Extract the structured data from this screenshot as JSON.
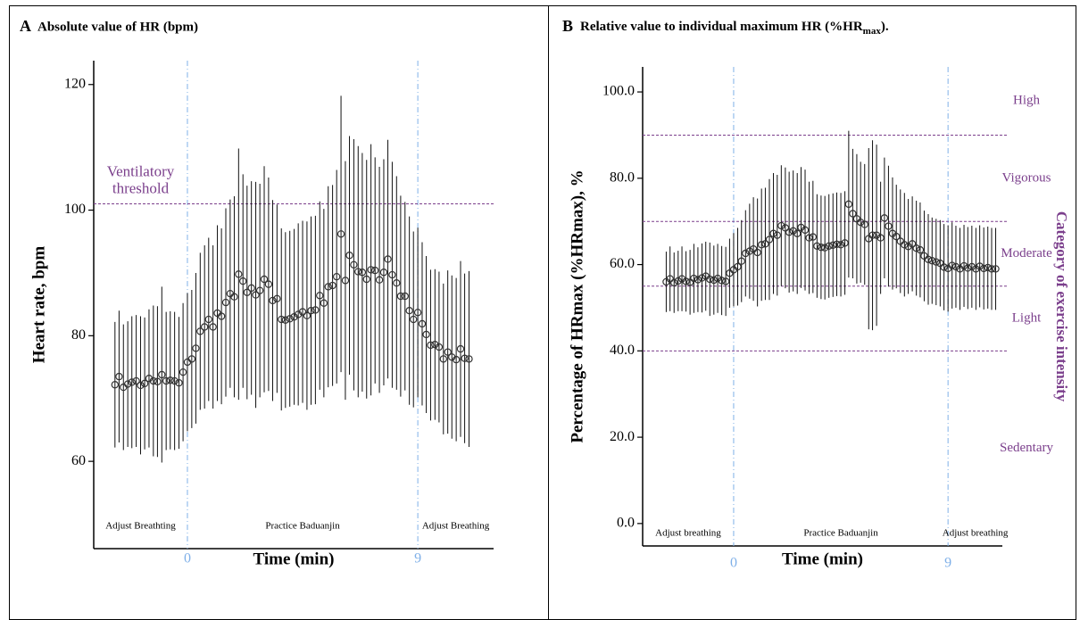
{
  "chart_data": [
    {
      "type": "errorbar",
      "panel": "A",
      "title": "Absolute value of HR (bpm)",
      "x_label": "Time (min)",
      "y_label": "Heart rate, bpm",
      "xlim": [
        -3.66,
        11.96
      ],
      "ylim": [
        46.1,
        123.8
      ],
      "xticks": [
        0,
        9
      ],
      "yticks": [
        60,
        80,
        100,
        120
      ],
      "threshold_lines": [
        101
      ],
      "threshold_label": [
        "Ventilatory",
        "threshold"
      ],
      "phases": [
        "Adjust Breathting",
        "Practice Baduanjin",
        "Adjust Breathing"
      ],
      "color": "#333333",
      "line_color": "#7b3f8c",
      "marker_line_color": "#7fb0e8",
      "x": [
        -2.83,
        -2.67,
        -2.5,
        -2.33,
        -2.17,
        -2,
        -1.83,
        -1.67,
        -1.5,
        -1.33,
        -1.17,
        -1,
        -0.83,
        -0.67,
        -0.5,
        -0.33,
        -0.17,
        0,
        0.17,
        0.33,
        0.5,
        0.67,
        0.83,
        1,
        1.17,
        1.33,
        1.5,
        1.67,
        1.83,
        2,
        2.17,
        2.33,
        2.5,
        2.67,
        2.83,
        3,
        3.17,
        3.33,
        3.5,
        3.67,
        3.83,
        4,
        4.17,
        4.33,
        4.5,
        4.67,
        4.83,
        5,
        5.17,
        5.33,
        5.5,
        5.67,
        5.83,
        6,
        6.17,
        6.33,
        6.5,
        6.67,
        6.83,
        7,
        7.17,
        7.33,
        7.5,
        7.67,
        7.83,
        8,
        8.17,
        8.33,
        8.5,
        8.67,
        8.83,
        9,
        9.17,
        9.33,
        9.5,
        9.67,
        9.83,
        10,
        10.17,
        10.33,
        10.5,
        10.67,
        10.83,
        11
      ],
      "values": [
        72.2,
        73.5,
        71.8,
        72.3,
        72.6,
        72.8,
        72.1,
        72.4,
        73.2,
        72.8,
        72.7,
        73.8,
        72.8,
        72.9,
        72.8,
        72.5,
        74.2,
        75.8,
        76.3,
        78.0,
        80.7,
        81.4,
        82.6,
        81.4,
        83.6,
        83.1,
        85.3,
        86.7,
        86.2,
        89.8,
        88.7,
        86.9,
        87.6,
        86.5,
        87.2,
        89.0,
        88.2,
        85.6,
        85.9,
        82.6,
        82.5,
        82.7,
        83.0,
        83.4,
        83.8,
        83.2,
        84.0,
        84.1,
        86.4,
        85.2,
        87.8,
        88.0,
        89.4,
        96.2,
        88.8,
        92.8,
        91.3,
        90.2,
        90.1,
        89.0,
        90.5,
        90.4,
        88.9,
        90.1,
        92.2,
        89.7,
        88.4,
        86.3,
        86.3,
        84.0,
        82.6,
        83.7,
        81.9,
        80.2,
        78.5,
        78.6,
        78.2,
        76.3,
        77.4,
        76.6,
        76.2,
        77.9,
        76.4,
        76.3
      ],
      "errors": [
        10,
        10.5,
        10,
        10,
        10.5,
        10.5,
        11,
        10.5,
        11,
        12,
        12,
        14,
        11,
        11,
        11,
        10.5,
        11,
        11,
        11,
        12,
        12.5,
        13,
        13,
        13,
        14,
        14,
        15,
        15,
        16,
        20,
        17,
        17,
        17,
        18,
        17,
        18,
        17,
        16,
        15,
        14.5,
        14,
        14,
        14,
        14.5,
        14.5,
        15,
        15,
        15,
        15,
        15,
        16,
        16,
        17,
        22,
        19,
        19,
        20,
        20,
        19,
        19,
        20,
        18,
        18,
        18,
        19,
        18,
        17,
        16,
        15,
        15,
        14,
        13.5,
        13,
        12.5,
        12,
        12,
        12,
        12,
        13,
        13,
        13,
        14,
        13.5,
        14
      ]
    },
    {
      "type": "errorbar",
      "panel": "B",
      "title": "Relative value to individual maximum HR (%HR",
      "title_sub": "max",
      "title_end": ").",
      "x_label": "Time (min)",
      "y_label": "Percentage of HRmax (%HRmax), %",
      "y2_label": "Category of exercise intensity",
      "xlim": [
        -3.82,
        11.28
      ],
      "ylim": [
        -5.2,
        105.8
      ],
      "xticks": [
        0,
        9
      ],
      "yticks": [
        {
          "value": 0,
          "label": "0.0"
        },
        {
          "value": 20,
          "label": "20.0"
        },
        {
          "value": 40,
          "label": "40.0"
        },
        {
          "value": 60,
          "label": "60.0"
        },
        {
          "value": 80,
          "label": "80.0"
        },
        {
          "value": 100,
          "label": "100.0"
        }
      ],
      "threshold_lines": [
        90,
        70,
        55,
        40
      ],
      "zones": [
        "High",
        "Vigorous",
        "Moderate",
        "Light",
        "Sedentary"
      ],
      "phases": [
        "Adjust breathing",
        "Practice Baduanjin",
        "Adjust breathing"
      ],
      "color": "#333333",
      "line_color": "#7b3f8c",
      "marker_line_color": "#7fb0e8",
      "x": [
        -2.83,
        -2.67,
        -2.5,
        -2.33,
        -2.17,
        -2,
        -1.83,
        -1.67,
        -1.5,
        -1.33,
        -1.17,
        -1,
        -0.83,
        -0.67,
        -0.5,
        -0.33,
        -0.17,
        0,
        0.17,
        0.33,
        0.5,
        0.67,
        0.83,
        1,
        1.17,
        1.33,
        1.5,
        1.67,
        1.83,
        2,
        2.17,
        2.33,
        2.5,
        2.67,
        2.83,
        3,
        3.17,
        3.33,
        3.5,
        3.67,
        3.83,
        4,
        4.17,
        4.33,
        4.5,
        4.67,
        4.83,
        5,
        5.17,
        5.33,
        5.5,
        5.67,
        5.83,
        6,
        6.17,
        6.33,
        6.5,
        6.67,
        6.83,
        7,
        7.17,
        7.33,
        7.5,
        7.67,
        7.83,
        8,
        8.17,
        8.33,
        8.5,
        8.67,
        8.83,
        9,
        9.17,
        9.33,
        9.5,
        9.67,
        9.83,
        10,
        10.17,
        10.33,
        10.5,
        10.67,
        10.83,
        11
      ],
      "values": [
        56.0,
        56.7,
        55.8,
        56.2,
        56.7,
        56.1,
        55.9,
        56.8,
        56.5,
        56.9,
        57.3,
        56.6,
        56.4,
        56.8,
        56.3,
        56.1,
        58.0,
        58.8,
        59.5,
        60.8,
        62.6,
        63.1,
        63.6,
        62.8,
        64.6,
        64.8,
        65.8,
        67.2,
        66.8,
        69.0,
        68.5,
        67.5,
        67.8,
        67.2,
        68.6,
        68.0,
        66.2,
        66.4,
        64.3,
        64.0,
        63.9,
        64.3,
        64.5,
        64.7,
        64.6,
        65.0,
        74.0,
        71.8,
        70.6,
        69.8,
        69.3,
        66.0,
        66.8,
        66.8,
        66.2,
        70.8,
        68.9,
        67.2,
        66.5,
        65.4,
        64.6,
        64.2,
        64.8,
        63.8,
        63.4,
        62.0,
        61.2,
        60.9,
        60.6,
        60.3,
        59.4,
        59.1,
        59.8,
        59.5,
        59.0,
        59.7,
        59.2,
        59.5,
        59.0,
        59.6,
        59.1,
        59.3,
        59.0,
        59.0
      ],
      "errors": [
        7,
        7.5,
        7,
        7,
        7.5,
        7,
        7.5,
        8,
        7.5,
        8,
        8,
        8.5,
        8,
        8,
        8,
        8,
        8,
        8.5,
        9,
        9.5,
        10,
        11,
        12,
        12.5,
        13,
        13,
        14,
        14,
        14,
        14,
        14,
        14,
        14,
        14,
        14,
        14,
        13,
        13,
        12,
        12,
        12,
        12,
        12,
        12,
        12,
        12,
        17,
        15,
        15,
        14,
        14,
        21,
        22,
        21,
        13,
        14,
        14,
        13,
        12,
        12,
        12,
        11,
        11,
        11,
        11,
        10.5,
        10.5,
        10,
        10,
        10,
        10,
        10,
        10,
        9.5,
        9.5,
        9.5,
        9.5,
        9.5,
        9.5,
        9.5,
        9.5,
        9.5,
        9.5,
        9.5
      ]
    }
  ]
}
